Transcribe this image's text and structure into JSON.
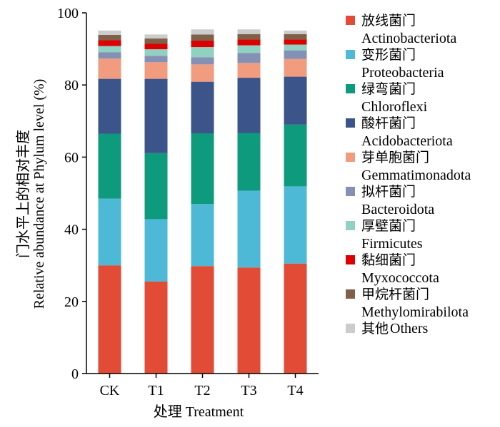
{
  "chart_data": {
    "type": "bar",
    "stacked": true,
    "xlabel": "处理 Treatment",
    "ylabel_cn": "门水平上的相对丰度",
    "ylabel_en": "Relative abundance at Phylum level (%)",
    "ylim": [
      0,
      100
    ],
    "yticks": [
      "0",
      "20",
      "40",
      "60",
      "80",
      "100"
    ],
    "categories": [
      "CK",
      "T1",
      "T2",
      "T3",
      "T4"
    ],
    "legend_position": "right",
    "series": [
      {
        "name_cn": "放线菌门",
        "name_en": "Actinobacteriota",
        "color": "#E24B35",
        "values": [
          30.0,
          25.5,
          29.8,
          29.4,
          30.5
        ]
      },
      {
        "name_cn": "变形菌门",
        "name_en": "Proteobacteria",
        "color": "#4DB9D6",
        "values": [
          18.5,
          17.3,
          17.2,
          21.3,
          21.4
        ]
      },
      {
        "name_cn": "绿弯菌门",
        "name_en": "Chloroflexi",
        "color": "#0E9A7D",
        "values": [
          18.0,
          18.3,
          19.6,
          16.0,
          17.1
        ]
      },
      {
        "name_cn": "酸杆菌门",
        "name_en": "Acidobacteriota",
        "color": "#3B5489",
        "values": [
          15.2,
          20.6,
          14.3,
          15.3,
          13.3
        ]
      },
      {
        "name_cn": "芽单胞菌门",
        "name_en": "Gemmatimonadota",
        "color": "#F19C7F",
        "values": [
          5.6,
          4.6,
          4.8,
          4.1,
          4.9
        ]
      },
      {
        "name_cn": "拟杆菌门",
        "name_en": "Bacteroidota",
        "color": "#8591B4",
        "values": [
          1.8,
          1.8,
          2.0,
          2.8,
          2.4
        ]
      },
      {
        "name_cn": "厚壁菌门",
        "name_en": "Firmicutes",
        "color": "#91D1C2",
        "values": [
          1.7,
          1.8,
          2.8,
          2.1,
          1.6
        ]
      },
      {
        "name_cn": "黏细菌门",
        "name_en": "Myxococcota",
        "color": "#DC0000",
        "values": [
          1.6,
          1.5,
          1.8,
          1.6,
          1.4
        ]
      },
      {
        "name_cn": "甲烷杆菌门",
        "name_en": "Methylomirabilota",
        "color": "#7E6148",
        "values": [
          1.5,
          1.5,
          1.7,
          1.5,
          1.5
        ]
      },
      {
        "name_cn": "其他",
        "name_en": "Others",
        "color": "#CCCCCC",
        "values": [
          1.2,
          1.1,
          1.4,
          1.3,
          1.0
        ]
      }
    ]
  }
}
